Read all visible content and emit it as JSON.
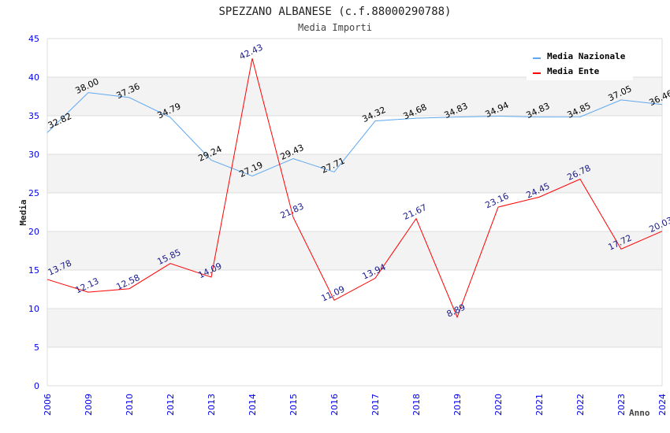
{
  "chart_data": {
    "type": "line",
    "title": "SPEZZANO ALBANESE (c.f.88000290788)",
    "subtitle": "Media Importi",
    "xlabel": "Anno",
    "ylabel": "Media",
    "ylim": [
      0,
      45
    ],
    "yticks": [
      "0",
      "5",
      "10",
      "15",
      "20",
      "25",
      "30",
      "35",
      "40",
      "45"
    ],
    "grid": true,
    "legend_position": "top-right",
    "categories": [
      "2006",
      "2009",
      "2010",
      "2012",
      "2013",
      "2014",
      "2015",
      "2016",
      "2017",
      "2018",
      "2019",
      "2020",
      "2021",
      "2022",
      "2023",
      "2024"
    ],
    "series": [
      {
        "name": "Media Nazionale",
        "color": "#5fa8f0",
        "label_color": "#000000",
        "values": [
          32.82,
          38.0,
          37.36,
          34.79,
          29.24,
          27.19,
          29.43,
          27.71,
          34.32,
          34.68,
          34.83,
          34.94,
          34.83,
          34.85,
          37.05,
          36.46
        ]
      },
      {
        "name": "Media Ente",
        "color": "#ff0000",
        "label_color": "#1a1a8c",
        "values": [
          13.78,
          12.13,
          12.58,
          15.85,
          14.09,
          42.43,
          21.83,
          11.09,
          13.94,
          21.67,
          8.89,
          23.16,
          24.45,
          26.78,
          17.72,
          20.03
        ]
      }
    ]
  }
}
